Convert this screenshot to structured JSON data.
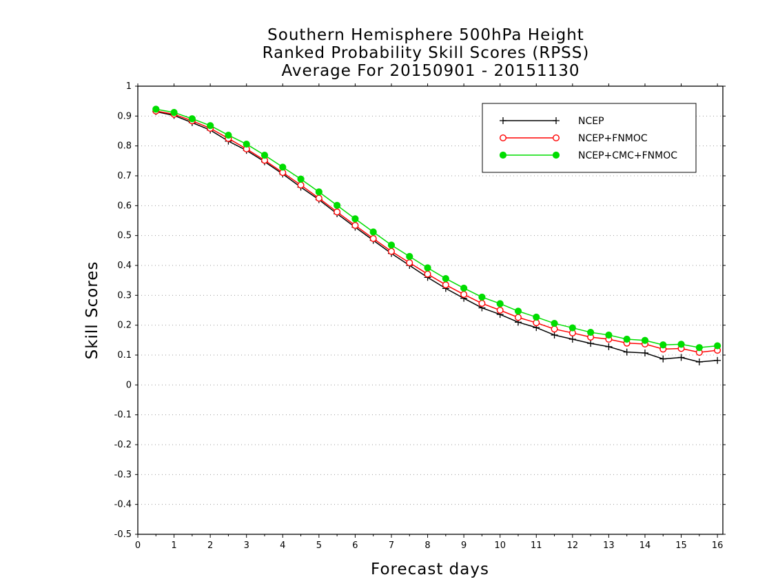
{
  "chart_data": {
    "type": "line",
    "title": [
      "Southern Hemisphere 500hPa Height",
      "Ranked Probability Skill Scores (RPSS)",
      "Average For 20150901 - 20151130"
    ],
    "xlabel": "Forecast days",
    "ylabel": "Skill Scores",
    "xlim": [
      0,
      16.15
    ],
    "ylim": [
      -0.5,
      1
    ],
    "xticks": [
      0,
      1,
      2,
      3,
      4,
      5,
      6,
      7,
      8,
      9,
      10,
      11,
      12,
      13,
      14,
      15,
      16
    ],
    "yticks": [
      -0.5,
      -0.4,
      -0.3,
      -0.2,
      -0.1,
      0,
      0.1,
      0.2,
      0.3,
      0.4,
      0.5,
      0.6,
      0.7,
      0.8,
      0.9,
      1
    ],
    "ytick_labels": [
      "-0.5",
      "-0.4",
      "-0.3",
      "-0.2",
      "-0.1",
      "0",
      "0.1",
      "0.2",
      "0.3",
      "0.4",
      "0.5",
      "0.6",
      "0.7",
      "0.8",
      "0.9",
      "1"
    ],
    "grid": "horizontal-dotted",
    "legend_position": "top-right",
    "x": [
      0.5,
      1,
      1.5,
      2,
      2.5,
      3,
      3.5,
      4,
      4.5,
      5,
      5.5,
      6,
      6.5,
      7,
      7.5,
      8,
      8.5,
      9,
      9.5,
      10,
      10.5,
      11,
      11.5,
      12,
      12.5,
      13,
      13.5,
      14,
      14.5,
      15,
      15.5,
      16
    ],
    "series": [
      {
        "name": "NCEP",
        "color": "#000000",
        "marker": "plus",
        "values": [
          0.915,
          0.902,
          0.878,
          0.853,
          0.816,
          0.785,
          0.747,
          0.706,
          0.662,
          0.62,
          0.573,
          0.528,
          0.484,
          0.44,
          0.4,
          0.36,
          0.323,
          0.29,
          0.258,
          0.236,
          0.21,
          0.192,
          0.167,
          0.153,
          0.139,
          0.128,
          0.11,
          0.107,
          0.087,
          0.092,
          0.077,
          0.082
        ]
      },
      {
        "name": "NCEP+FNMOC",
        "color": "#ff0000",
        "marker": "open-circle",
        "values": [
          0.917,
          0.906,
          0.884,
          0.859,
          0.825,
          0.79,
          0.752,
          0.711,
          0.669,
          0.625,
          0.579,
          0.534,
          0.49,
          0.447,
          0.409,
          0.371,
          0.335,
          0.303,
          0.273,
          0.25,
          0.226,
          0.208,
          0.187,
          0.174,
          0.16,
          0.153,
          0.14,
          0.137,
          0.12,
          0.122,
          0.109,
          0.116
        ]
      },
      {
        "name": "NCEP+CMC+FNMOC",
        "color": "#00dd00",
        "marker": "filled-circle",
        "values": [
          0.923,
          0.912,
          0.891,
          0.868,
          0.836,
          0.806,
          0.769,
          0.729,
          0.689,
          0.646,
          0.601,
          0.556,
          0.512,
          0.468,
          0.43,
          0.392,
          0.356,
          0.324,
          0.294,
          0.272,
          0.247,
          0.227,
          0.206,
          0.191,
          0.176,
          0.167,
          0.153,
          0.149,
          0.134,
          0.136,
          0.125,
          0.131
        ]
      }
    ]
  }
}
